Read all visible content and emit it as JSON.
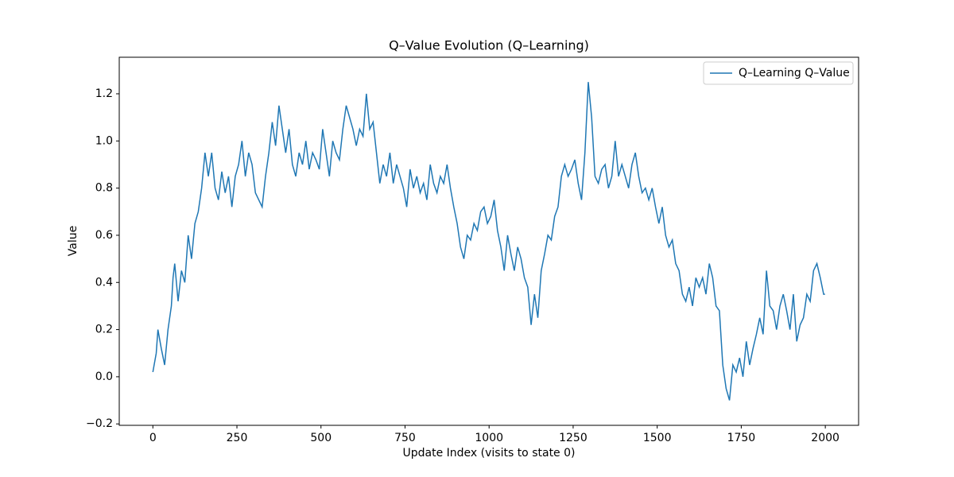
{
  "chart_data": {
    "type": "line",
    "title": "Q–Value Evolution (Q–Learning)",
    "x_label": "Update Index (visits to state 0)",
    "y_label": "Value",
    "x": [
      0,
      10,
      15,
      25,
      35,
      45,
      55,
      60,
      65,
      75,
      85,
      95,
      105,
      115,
      125,
      135,
      145,
      155,
      165,
      175,
      185,
      195,
      205,
      215,
      225,
      235,
      245,
      255,
      265,
      275,
      285,
      295,
      305,
      315,
      325,
      335,
      345,
      355,
      365,
      375,
      385,
      395,
      405,
      415,
      425,
      435,
      445,
      455,
      465,
      475,
      485,
      495,
      505,
      515,
      525,
      535,
      545,
      555,
      565,
      575,
      585,
      595,
      605,
      615,
      625,
      635,
      645,
      655,
      665,
      675,
      685,
      695,
      705,
      715,
      725,
      735,
      745,
      755,
      765,
      775,
      785,
      795,
      805,
      815,
      825,
      835,
      845,
      855,
      865,
      875,
      885,
      895,
      905,
      915,
      925,
      935,
      945,
      955,
      965,
      975,
      985,
      995,
      1005,
      1015,
      1025,
      1035,
      1045,
      1055,
      1065,
      1075,
      1085,
      1095,
      1105,
      1115,
      1125,
      1135,
      1145,
      1155,
      1165,
      1175,
      1185,
      1195,
      1205,
      1215,
      1225,
      1235,
      1245,
      1255,
      1265,
      1275,
      1285,
      1295,
      1305,
      1315,
      1325,
      1335,
      1345,
      1355,
      1365,
      1375,
      1385,
      1395,
      1405,
      1415,
      1425,
      1435,
      1445,
      1455,
      1465,
      1475,
      1485,
      1495,
      1505,
      1515,
      1525,
      1535,
      1545,
      1555,
      1565,
      1575,
      1585,
      1595,
      1605,
      1615,
      1625,
      1635,
      1645,
      1655,
      1665,
      1675,
      1685,
      1695,
      1705,
      1715,
      1725,
      1735,
      1745,
      1755,
      1765,
      1775,
      1785,
      1795,
      1805,
      1815,
      1825,
      1835,
      1845,
      1855,
      1865,
      1875,
      1885,
      1895,
      1905,
      1915,
      1925,
      1935,
      1945,
      1955,
      1965,
      1975,
      1985,
      1995,
      1999
    ],
    "series": [
      {
        "name": "Q–Learning Q–Value",
        "color": "#1f77b4",
        "values": [
          0.02,
          0.1,
          0.2,
          0.12,
          0.05,
          0.2,
          0.3,
          0.42,
          0.48,
          0.32,
          0.45,
          0.4,
          0.6,
          0.5,
          0.65,
          0.7,
          0.8,
          0.95,
          0.85,
          0.95,
          0.8,
          0.75,
          0.87,
          0.78,
          0.85,
          0.72,
          0.85,
          0.9,
          1.0,
          0.85,
          0.95,
          0.9,
          0.78,
          0.75,
          0.72,
          0.85,
          0.95,
          1.08,
          0.98,
          1.15,
          1.05,
          0.95,
          1.05,
          0.9,
          0.85,
          0.95,
          0.9,
          1.0,
          0.88,
          0.95,
          0.92,
          0.88,
          1.05,
          0.95,
          0.85,
          1.0,
          0.95,
          0.92,
          1.05,
          1.15,
          1.1,
          1.05,
          0.98,
          1.05,
          1.02,
          1.2,
          1.05,
          1.08,
          0.95,
          0.82,
          0.9,
          0.85,
          0.95,
          0.82,
          0.9,
          0.85,
          0.8,
          0.72,
          0.88,
          0.8,
          0.85,
          0.78,
          0.82,
          0.75,
          0.9,
          0.82,
          0.78,
          0.85,
          0.82,
          0.9,
          0.8,
          0.72,
          0.65,
          0.55,
          0.5,
          0.6,
          0.58,
          0.65,
          0.62,
          0.7,
          0.72,
          0.65,
          0.68,
          0.75,
          0.62,
          0.55,
          0.45,
          0.6,
          0.52,
          0.45,
          0.55,
          0.5,
          0.42,
          0.38,
          0.22,
          0.35,
          0.25,
          0.45,
          0.52,
          0.6,
          0.58,
          0.68,
          0.72,
          0.85,
          0.9,
          0.85,
          0.88,
          0.92,
          0.82,
          0.75,
          0.95,
          1.25,
          1.1,
          0.85,
          0.82,
          0.88,
          0.9,
          0.8,
          0.85,
          1.0,
          0.85,
          0.9,
          0.85,
          0.8,
          0.9,
          0.95,
          0.85,
          0.78,
          0.8,
          0.75,
          0.8,
          0.72,
          0.65,
          0.72,
          0.6,
          0.55,
          0.58,
          0.48,
          0.45,
          0.35,
          0.32,
          0.38,
          0.3,
          0.42,
          0.38,
          0.42,
          0.35,
          0.48,
          0.42,
          0.3,
          0.28,
          0.05,
          -0.05,
          -0.1,
          0.05,
          0.02,
          0.08,
          0.0,
          0.15,
          0.05,
          0.12,
          0.18,
          0.25,
          0.18,
          0.45,
          0.3,
          0.28,
          0.2,
          0.3,
          0.35,
          0.28,
          0.2,
          0.35,
          0.15,
          0.22,
          0.25,
          0.35,
          0.32,
          0.45,
          0.48,
          0.42,
          0.35,
          0.35
        ]
      }
    ],
    "xlim": [
      -100,
      2099
    ],
    "ylim": [
      -0.206,
      1.355
    ],
    "xticks": [
      0,
      250,
      500,
      750,
      1000,
      1250,
      1500,
      1750,
      2000
    ],
    "yticks": [
      {
        "value": -0.2,
        "label": "−0.2"
      },
      {
        "value": 0,
        "label": "0.0"
      },
      0.2,
      0.4,
      0.6,
      0.8,
      {
        "value": 1,
        "label": "1.0"
      },
      1.2
    ],
    "legend": "upper right",
    "grid": false
  }
}
